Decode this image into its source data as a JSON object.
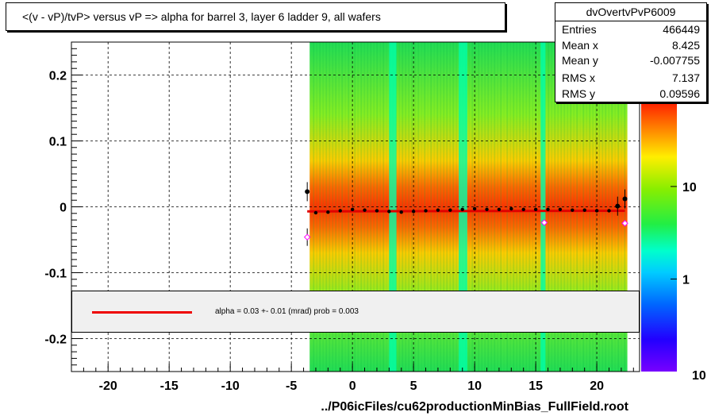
{
  "title": "<(v - vP)/tvP> versus   vP => alpha for barrel 3, layer 6 ladder 9, all wafers",
  "xlabel": "../P06icFiles/cu62productionMinBias_FullField.root",
  "stats": {
    "name": "dvOvertvPvP6009",
    "rows": [
      {
        "key": "Entries",
        "value": "466449"
      },
      {
        "key": "Mean x",
        "value": "8.425"
      },
      {
        "key": "Mean y",
        "value": "-0.007755"
      },
      {
        "key": "RMS x",
        "value": "7.137"
      },
      {
        "key": "RMS y",
        "value": "0.09596"
      }
    ]
  },
  "legend": {
    "text": "alpha =    0.03 +-  0.01 (mrad) prob = 0.003",
    "color": "#e00000"
  },
  "colors": {
    "fit": "#e00000",
    "profile": "#000000",
    "open_marker": "#ff00ff"
  },
  "chart_data": {
    "type": "heatmap",
    "xlim": [
      -23,
      23.5
    ],
    "ylim": [
      -0.25,
      0.25
    ],
    "grid": true,
    "x_ticks": [
      -20,
      -15,
      -10,
      -5,
      0,
      5,
      10,
      15,
      20
    ],
    "x_tick_labels": [
      "-20",
      "-15",
      "-10",
      "-5",
      "0",
      "5",
      "10",
      "15",
      "20"
    ],
    "y_ticks": [
      -0.2,
      -0.1,
      0,
      0.1,
      0.2
    ],
    "y_tick_labels": [
      "-0.2",
      "-0.1",
      "0",
      "0.1",
      "0.2"
    ],
    "z_scale": "log",
    "z_ticks": [
      1,
      10
    ],
    "z_tick_labels": [
      "1",
      "10"
    ],
    "z_min_label": "10",
    "x_coverage": [
      -3.5,
      22.5
    ],
    "profile": {
      "x": [
        -3.7,
        -3.0,
        -2.0,
        -1.0,
        0.0,
        1.0,
        2.0,
        3.0,
        4.0,
        5.0,
        6.0,
        7.0,
        8.0,
        9.0,
        10.0,
        11.0,
        12.0,
        13.0,
        14.0,
        15.0,
        16.0,
        17.0,
        18.0,
        19.0,
        20.0,
        21.0,
        21.7,
        22.3
      ],
      "y": [
        0.023,
        -0.009,
        -0.008,
        -0.006,
        -0.004,
        -0.005,
        -0.006,
        -0.007,
        -0.008,
        -0.007,
        -0.006,
        -0.005,
        -0.005,
        -0.004,
        -0.003,
        -0.004,
        -0.004,
        -0.003,
        -0.004,
        -0.004,
        -0.004,
        -0.004,
        -0.005,
        -0.005,
        -0.006,
        -0.006,
        0.001,
        0.012
      ]
    },
    "open_markers": {
      "x": [
        -3.7,
        15.7,
        22.3
      ],
      "y": [
        -0.046,
        -0.024,
        -0.025
      ]
    },
    "fit_line": {
      "x": [
        -3.7,
        22.3
      ],
      "y": [
        -0.007,
        -0.006
      ]
    }
  }
}
